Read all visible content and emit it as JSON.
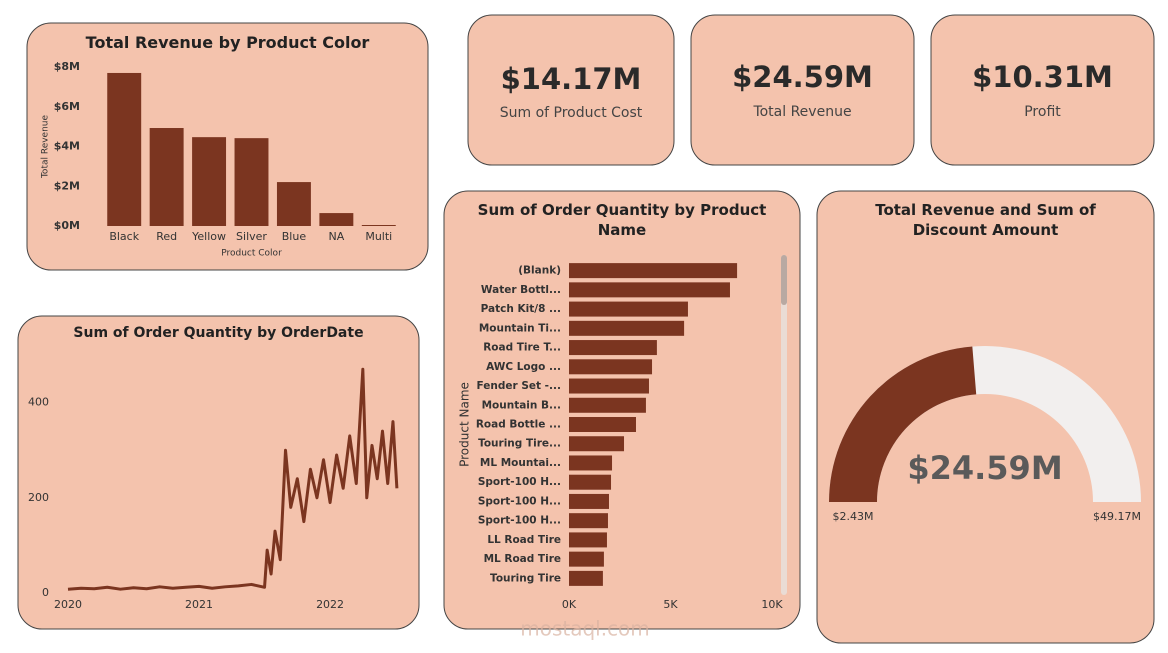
{
  "cards": [
    {
      "value": "$14.17M",
      "label": "Sum of Product Cost"
    },
    {
      "value": "$24.59M",
      "label": "Total Revenue"
    },
    {
      "value": "$10.31M",
      "label": "Profit"
    }
  ],
  "watermark": "mostaql.com",
  "chart_data": [
    {
      "type": "bar",
      "title": "Total Revenue by Product Color",
      "color": "#7b3520",
      "x_label": "Product Color",
      "y_label": "Total Revenue",
      "categories": [
        "Black",
        "Red",
        "Yellow",
        "Silver",
        "Blue",
        "NA",
        "Multi"
      ],
      "values": [
        7700000,
        4930000,
        4470000,
        4420000,
        2210000,
        650000,
        50000
      ],
      "ylim": [
        0,
        8000000
      ],
      "yticks": [
        {
          "value": 0,
          "label": "$0M"
        },
        {
          "value": 2000000,
          "label": "$2M"
        },
        {
          "value": 4000000,
          "label": "$4M"
        },
        {
          "value": 6000000,
          "label": "$6M"
        },
        {
          "value": 8000000,
          "label": "$8M"
        }
      ]
    },
    {
      "type": "line",
      "title": "Sum of Order Quantity by OrderDate",
      "color": "#7b3520",
      "x": [
        2020.0,
        2020.1,
        2020.2,
        2020.3,
        2020.4,
        2020.5,
        2020.6,
        2020.7,
        2020.8,
        2020.9,
        2021.0,
        2021.1,
        2021.2,
        2021.3,
        2021.4,
        2021.5,
        2021.52,
        2021.55,
        2021.58,
        2021.62,
        2021.66,
        2021.7,
        2021.75,
        2021.8,
        2021.85,
        2021.9,
        2021.95,
        2022.0,
        2022.05,
        2022.1,
        2022.15,
        2022.2,
        2022.25,
        2022.28,
        2022.32,
        2022.36,
        2022.4,
        2022.44,
        2022.48,
        2022.51
      ],
      "values": [
        8,
        10,
        9,
        12,
        8,
        11,
        9,
        13,
        10,
        12,
        14,
        10,
        13,
        15,
        18,
        12,
        90,
        40,
        130,
        70,
        300,
        180,
        240,
        150,
        260,
        200,
        280,
        190,
        290,
        220,
        330,
        230,
        470,
        200,
        310,
        240,
        340,
        230,
        360,
        220
      ],
      "xlim": [
        2019.92,
        2022.61
      ],
      "xticks": [
        2020,
        2021,
        2022
      ],
      "ylim": [
        0,
        500
      ],
      "yticks": [
        0,
        200,
        400
      ]
    },
    {
      "type": "hbar",
      "title": "Sum of Order Quantity by Product Name",
      "color": "#7b3520",
      "y_label": "Product Name",
      "categories": [
        "(Blank)",
        "Water Bottl...",
        "Patch Kit/8 ...",
        "Mountain Ti...",
        "Road Tire T...",
        "AWC Logo ...",
        "Fender Set -...",
        "Mountain B...",
        "Road Bottle ...",
        "Touring Tire...",
        "ML Mountai...",
        "Sport-100 H...",
        "Sport-100 H...",
        "Sport-100 H...",
        "LL Road Tire",
        "ML Road Tire",
        "Touring Tire"
      ],
      "values": [
        8280,
        7930,
        5860,
        5670,
        4330,
        4090,
        3940,
        3790,
        3300,
        2710,
        2120,
        2070,
        1970,
        1920,
        1870,
        1720,
        1670
      ],
      "xlim": [
        0,
        10000
      ],
      "xticks": [
        {
          "value": 0,
          "label": "0K"
        },
        {
          "value": 5000,
          "label": "5K"
        },
        {
          "value": 10000,
          "label": "10K"
        }
      ]
    },
    {
      "type": "gauge",
      "title": "Total Revenue and Sum of Discount Amount",
      "color": "#7b3520",
      "track_color": "#f2efee",
      "value": 24590000,
      "value_label": "$24.59M",
      "min": 2430000,
      "min_label": "$2.43M",
      "max": 49170000,
      "max_label": "$49.17M"
    }
  ]
}
